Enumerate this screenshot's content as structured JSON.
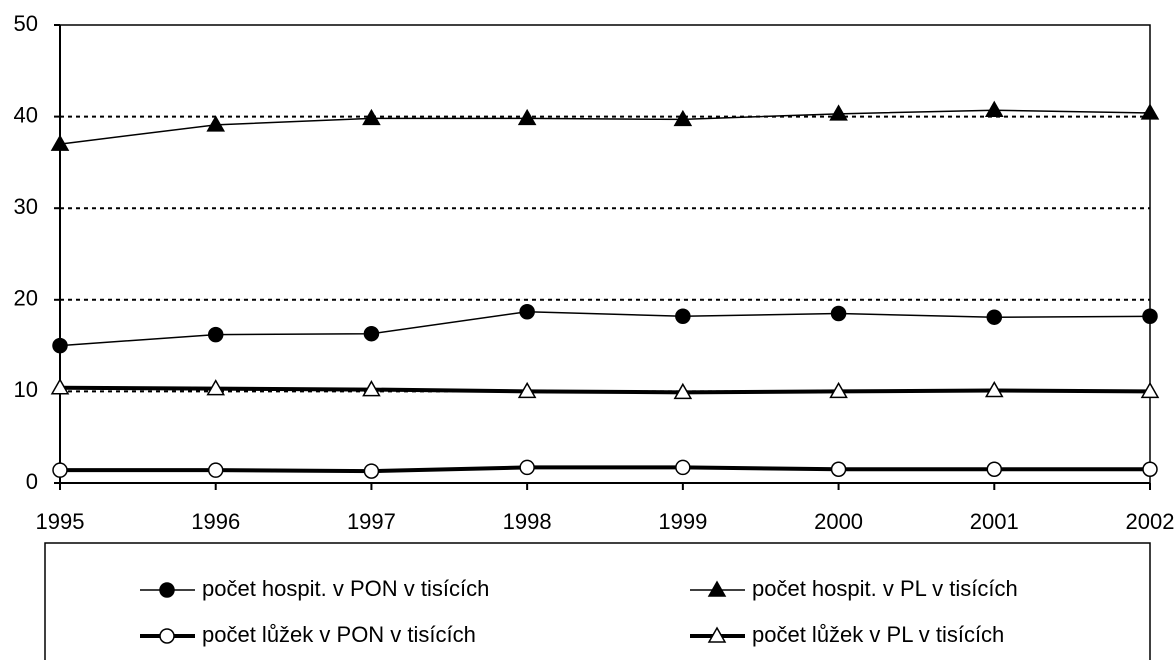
{
  "chart_data": {
    "type": "line",
    "x": [
      1995,
      1996,
      1997,
      1998,
      1999,
      2000,
      2001,
      2002
    ],
    "xlim": [
      1995,
      2002
    ],
    "xticks": [
      1995,
      1996,
      1997,
      1998,
      1999,
      2000,
      2001,
      2002
    ],
    "ylim": [
      0,
      50
    ],
    "yticks": [
      0,
      10,
      20,
      30,
      40,
      50
    ],
    "grid": true,
    "series": [
      {
        "name": "počet hospit. v PON v tisících",
        "color": "#000000",
        "marker": "circle",
        "filled": true,
        "line_width": 1.5,
        "values": [
          15.0,
          16.2,
          16.3,
          18.7,
          18.2,
          18.5,
          18.1,
          18.2
        ]
      },
      {
        "name": "počet hospit. v PL v tisících",
        "color": "#000000",
        "marker": "triangle",
        "filled": true,
        "line_width": 1.5,
        "values": [
          37.0,
          39.1,
          39.8,
          39.8,
          39.7,
          40.3,
          40.7,
          40.4
        ]
      },
      {
        "name": "počet lůžek v PON v tisících",
        "color": "#000000",
        "marker": "circle",
        "filled": false,
        "line_width": 4,
        "values": [
          1.4,
          1.4,
          1.3,
          1.7,
          1.7,
          1.5,
          1.5,
          1.5
        ]
      },
      {
        "name": "počet lůžek v PL v tisících",
        "color": "#000000",
        "marker": "triangle",
        "filled": false,
        "line_width": 4,
        "values": [
          10.4,
          10.3,
          10.2,
          10.0,
          9.9,
          10.0,
          10.1,
          10.0
        ]
      }
    ]
  }
}
